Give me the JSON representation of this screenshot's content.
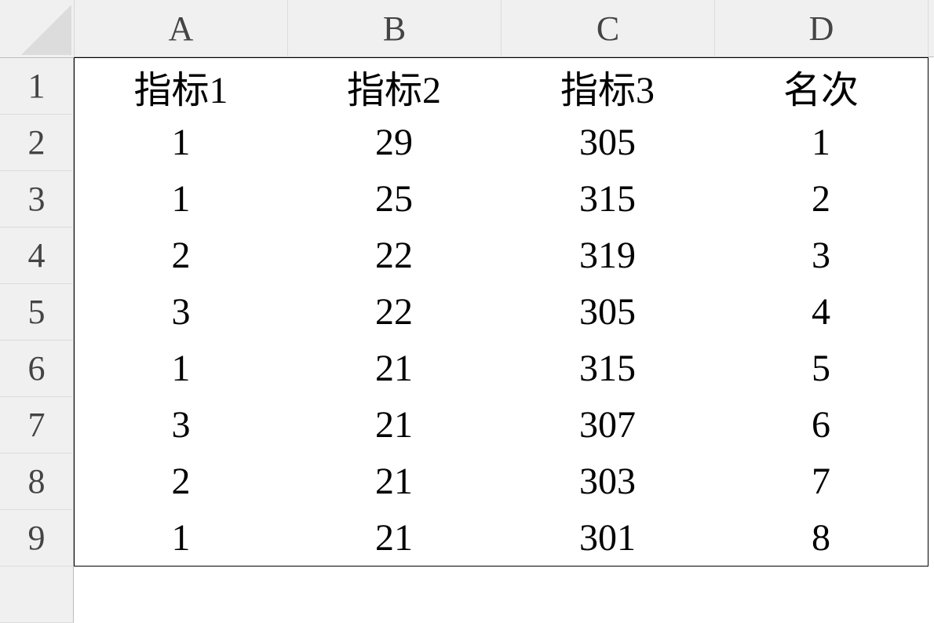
{
  "columns": [
    "A",
    "B",
    "C",
    "D"
  ],
  "rows": [
    {
      "number": "1",
      "cells": [
        "指标1",
        "指标2",
        "指标3",
        "名次"
      ]
    },
    {
      "number": "2",
      "cells": [
        "1",
        "29",
        "305",
        "1"
      ]
    },
    {
      "number": "3",
      "cells": [
        "1",
        "25",
        "315",
        "2"
      ]
    },
    {
      "number": "4",
      "cells": [
        "2",
        "22",
        "319",
        "3"
      ]
    },
    {
      "number": "5",
      "cells": [
        "3",
        "22",
        "305",
        "4"
      ]
    },
    {
      "number": "6",
      "cells": [
        "1",
        "21",
        "315",
        "5"
      ]
    },
    {
      "number": "7",
      "cells": [
        "3",
        "21",
        "307",
        "6"
      ]
    },
    {
      "number": "8",
      "cells": [
        "2",
        "21",
        "303",
        "7"
      ]
    },
    {
      "number": "9",
      "cells": [
        "1",
        "21",
        "301",
        "8"
      ]
    }
  ],
  "colors": {
    "header_bg": "#f0f0f0",
    "header_text": "#444444",
    "grid_border": "#000000"
  }
}
